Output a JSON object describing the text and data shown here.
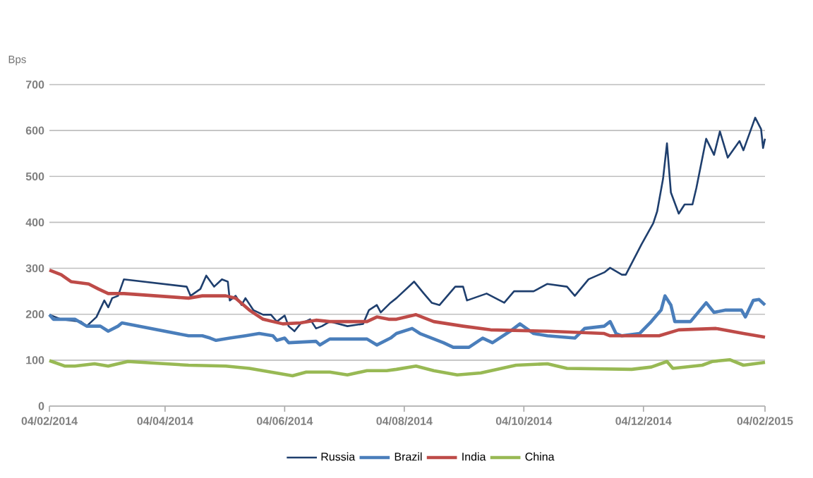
{
  "chart_data": {
    "type": "line",
    "ylabel": "Bps",
    "grid": "y",
    "legend": "bottom",
    "xlim": [
      "2014-02-04",
      "2015-02-04"
    ],
    "ylim": [
      0,
      700
    ],
    "yticks": [
      0,
      100,
      200,
      300,
      400,
      500,
      600,
      700
    ],
    "xticks": [
      {
        "value": "2014-02-04",
        "label": "04/02/2014"
      },
      {
        "value": "2014-04-04",
        "label": "04/04/2014"
      },
      {
        "value": "2014-06-04",
        "label": "04/06/2014"
      },
      {
        "value": "2014-08-04",
        "label": "04/08/2014"
      },
      {
        "value": "2014-10-04",
        "label": "04/10/2014"
      },
      {
        "value": "2014-12-04",
        "label": "04/12/2014"
      },
      {
        "value": "2015-02-04",
        "label": "04/02/2015"
      }
    ],
    "series": [
      {
        "name": "Russia",
        "color": "#1f3f6e",
        "x": [
          "2014-02-04",
          "2014-02-10",
          "2014-02-20",
          "2014-02-23",
          "2014-02-28",
          "2014-03-04",
          "2014-03-06",
          "2014-03-08",
          "2014-03-11",
          "2014-03-14",
          "2014-04-15",
          "2014-04-17",
          "2014-04-22",
          "2014-04-25",
          "2014-04-29",
          "2014-05-03",
          "2014-05-06",
          "2014-05-07",
          "2014-05-10",
          "2014-05-13",
          "2014-05-15",
          "2014-05-19",
          "2014-05-24",
          "2014-05-28",
          "2014-05-31",
          "2014-06-04",
          "2014-06-06",
          "2014-06-09",
          "2014-06-12",
          "2014-06-17",
          "2014-06-20",
          "2014-06-23",
          "2014-06-27",
          "2014-07-06",
          "2014-07-14",
          "2014-07-17",
          "2014-07-21",
          "2014-07-23",
          "2014-07-28",
          "2014-07-31",
          "2014-08-09",
          "2014-08-14",
          "2014-08-18",
          "2014-08-22",
          "2014-08-30",
          "2014-09-03",
          "2014-09-05",
          "2014-09-15",
          "2014-09-24",
          "2014-09-29",
          "2014-10-09",
          "2014-10-16",
          "2014-10-26",
          "2014-10-30",
          "2014-11-06",
          "2014-11-14",
          "2014-11-17",
          "2014-11-23",
          "2014-11-25",
          "2014-12-03",
          "2014-12-09",
          "2014-12-11",
          "2014-12-14",
          "2014-12-16",
          "2014-12-18",
          "2014-12-22",
          "2014-12-25",
          "2014-12-29",
          "2014-12-31",
          "2015-01-05",
          "2015-01-09",
          "2015-01-12",
          "2015-01-16",
          "2015-01-22",
          "2015-01-24",
          "2015-01-30",
          "2015-02-02",
          "2015-02-03",
          "2015-02-04"
        ],
        "values": [
          199,
          189,
          184,
          174,
          194,
          230,
          215,
          235,
          240,
          276,
          260,
          240,
          255,
          284,
          260,
          276,
          271,
          230,
          240,
          220,
          235,
          209,
          199,
          199,
          184,
          197,
          174,
          163,
          179,
          189,
          169,
          174,
          184,
          174,
          179,
          209,
          220,
          204,
          225,
          235,
          271,
          245,
          225,
          220,
          260,
          260,
          230,
          245,
          225,
          250,
          250,
          266,
          260,
          240,
          276,
          291,
          301,
          286,
          286,
          352,
          398,
          424,
          495,
          572,
          465,
          419,
          439,
          439,
          475,
          582,
          547,
          598,
          541,
          577,
          557,
          628,
          603,
          562,
          582
        ]
      },
      {
        "name": "Brazil",
        "color": "#4a7ebb",
        "x": [
          "2014-02-04",
          "2014-02-06",
          "2014-02-17",
          "2014-02-23",
          "2014-03-02",
          "2014-03-06",
          "2014-03-11",
          "2014-03-13",
          "2014-04-16",
          "2014-04-23",
          "2014-04-27",
          "2014-04-30",
          "2014-05-07",
          "2014-05-15",
          "2014-05-22",
          "2014-05-29",
          "2014-05-31",
          "2014-06-04",
          "2014-06-06",
          "2014-06-20",
          "2014-06-22",
          "2014-06-27",
          "2014-07-16",
          "2014-07-21",
          "2014-07-28",
          "2014-07-31",
          "2014-08-08",
          "2014-08-12",
          "2014-08-24",
          "2014-08-29",
          "2014-09-06",
          "2014-09-13",
          "2014-09-18",
          "2014-09-27",
          "2014-10-02",
          "2014-10-09",
          "2014-10-16",
          "2014-10-30",
          "2014-11-04",
          "2014-11-14",
          "2014-11-17",
          "2014-11-20",
          "2014-11-23",
          "2014-12-02",
          "2014-12-08",
          "2014-12-13",
          "2014-12-15",
          "2014-12-18",
          "2014-12-20",
          "2014-12-28",
          "2015-01-05",
          "2015-01-09",
          "2015-01-15",
          "2015-01-23",
          "2015-01-25",
          "2015-01-29",
          "2015-02-01",
          "2015-02-04"
        ],
        "values": [
          199,
          189,
          189,
          174,
          174,
          163,
          174,
          181,
          153,
          153,
          148,
          143,
          148,
          153,
          158,
          153,
          143,
          148,
          138,
          141,
          133,
          146,
          146,
          133,
          148,
          158,
          169,
          158,
          138,
          128,
          128,
          148,
          138,
          163,
          179,
          158,
          153,
          148,
          169,
          174,
          184,
          158,
          153,
          158,
          184,
          209,
          240,
          220,
          184,
          184,
          225,
          204,
          209,
          209,
          194,
          230,
          232,
          220
        ]
      },
      {
        "name": "India",
        "color": "#be4b48",
        "x": [
          "2014-02-04",
          "2014-02-10",
          "2014-02-15",
          "2014-02-24",
          "2014-03-01",
          "2014-03-06",
          "2014-03-14",
          "2014-04-16",
          "2014-04-23",
          "2014-05-05",
          "2014-05-10",
          "2014-05-17",
          "2014-05-24",
          "2014-06-03",
          "2014-06-12",
          "2014-06-20",
          "2014-06-27",
          "2014-07-16",
          "2014-07-21",
          "2014-07-27",
          "2014-07-31",
          "2014-08-10",
          "2014-08-19",
          "2014-09-03",
          "2014-09-17",
          "2014-10-16",
          "2014-11-14",
          "2014-11-17",
          "2014-12-12",
          "2014-12-22",
          "2015-01-10",
          "2015-01-24",
          "2015-02-04"
        ],
        "values": [
          296,
          286,
          271,
          266,
          255,
          245,
          245,
          235,
          240,
          240,
          235,
          209,
          189,
          179,
          181,
          187,
          184,
          184,
          194,
          189,
          189,
          199,
          184,
          174,
          166,
          163,
          158,
          153,
          153,
          166,
          169,
          158,
          150
        ]
      },
      {
        "name": "China",
        "color": "#98b954",
        "x": [
          "2014-02-04",
          "2014-02-12",
          "2014-02-17",
          "2014-02-27",
          "2014-03-06",
          "2014-03-16",
          "2014-04-16",
          "2014-05-05",
          "2014-05-17",
          "2014-05-28",
          "2014-06-08",
          "2014-06-15",
          "2014-06-27",
          "2014-07-06",
          "2014-07-16",
          "2014-07-26",
          "2014-07-31",
          "2014-08-10",
          "2014-08-19",
          "2014-08-31",
          "2014-09-12",
          "2014-09-30",
          "2014-10-16",
          "2014-10-26",
          "2014-11-28",
          "2014-12-08",
          "2014-12-16",
          "2014-12-19",
          "2015-01-03",
          "2015-01-08",
          "2015-01-17",
          "2015-01-24",
          "2015-02-04"
        ],
        "values": [
          99,
          87,
          87,
          92,
          87,
          97,
          89,
          87,
          82,
          74,
          66,
          74,
          74,
          68,
          77,
          77,
          80,
          87,
          77,
          68,
          72,
          89,
          92,
          82,
          80,
          85,
          97,
          82,
          89,
          97,
          101,
          89,
          95
        ]
      }
    ]
  }
}
